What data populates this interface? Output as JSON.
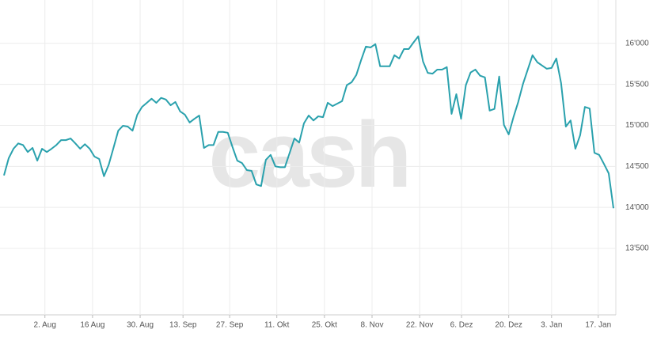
{
  "chart_data": {
    "type": "line",
    "watermark": "cash",
    "color": "#2aa1ad",
    "grid": true,
    "values": [
      14390,
      14600,
      14715,
      14780,
      14760,
      14675,
      14725,
      14570,
      14715,
      14675,
      14715,
      14760,
      14820,
      14820,
      14840,
      14780,
      14715,
      14770,
      14715,
      14620,
      14590,
      14380,
      14520,
      14725,
      14935,
      14995,
      14985,
      14935,
      15130,
      15225,
      15275,
      15325,
      15275,
      15335,
      15315,
      15245,
      15285,
      15170,
      15130,
      15035,
      15080,
      15120,
      14725,
      14760,
      14760,
      14920,
      14920,
      14910,
      14735,
      14570,
      14540,
      14455,
      14445,
      14280,
      14260,
      14580,
      14640,
      14500,
      14490,
      14490,
      14665,
      14840,
      14790,
      15025,
      15120,
      15060,
      15110,
      15100,
      15275,
      15235,
      15265,
      15295,
      15490,
      15525,
      15615,
      15795,
      15960,
      15950,
      15990,
      15720,
      15720,
      15720,
      15855,
      15815,
      15930,
      15930,
      16010,
      16085,
      15780,
      15640,
      15630,
      15680,
      15680,
      15710,
      15140,
      15380,
      15080,
      15490,
      15645,
      15680,
      15605,
      15585,
      15180,
      15200,
      15595,
      15005,
      14890,
      15100,
      15285,
      15505,
      15680,
      15855,
      15770,
      15730,
      15690,
      15700,
      15815,
      15515,
      14985,
      15060,
      14715,
      14880,
      15225,
      15205,
      14665,
      14640,
      14530,
      14415,
      13990
    ],
    "xlim": [
      0,
      128
    ],
    "xticks": [
      {
        "value": 8.6,
        "label": "2. Aug"
      },
      {
        "value": 18.6,
        "label": "16 Aug"
      },
      {
        "value": 28.6,
        "label": "30. Aug"
      },
      {
        "value": 37.6,
        "label": "13. Sep"
      },
      {
        "value": 47.4,
        "label": "27. Sep"
      },
      {
        "value": 57.3,
        "label": "11. Okt"
      },
      {
        "value": 67.3,
        "label": "25. Okt"
      },
      {
        "value": 77.3,
        "label": "8. Nov"
      },
      {
        "value": 87.3,
        "label": "22. Nov"
      },
      {
        "value": 96.1,
        "label": "6. Dez"
      },
      {
        "value": 106,
        "label": "20. Dez"
      },
      {
        "value": 115,
        "label": "3. Jan"
      },
      {
        "value": 124.8,
        "label": "17. Jan"
      }
    ],
    "ylim": [
      12690,
      16480
    ],
    "yticks": [
      {
        "value": 13500,
        "label": "13'500"
      },
      {
        "value": 14000,
        "label": "14'000"
      },
      {
        "value": 14500,
        "label": "14'500"
      },
      {
        "value": 15000,
        "label": "15'000"
      },
      {
        "value": 15500,
        "label": "15'500"
      },
      {
        "value": 16000,
        "label": "16'000"
      }
    ]
  }
}
